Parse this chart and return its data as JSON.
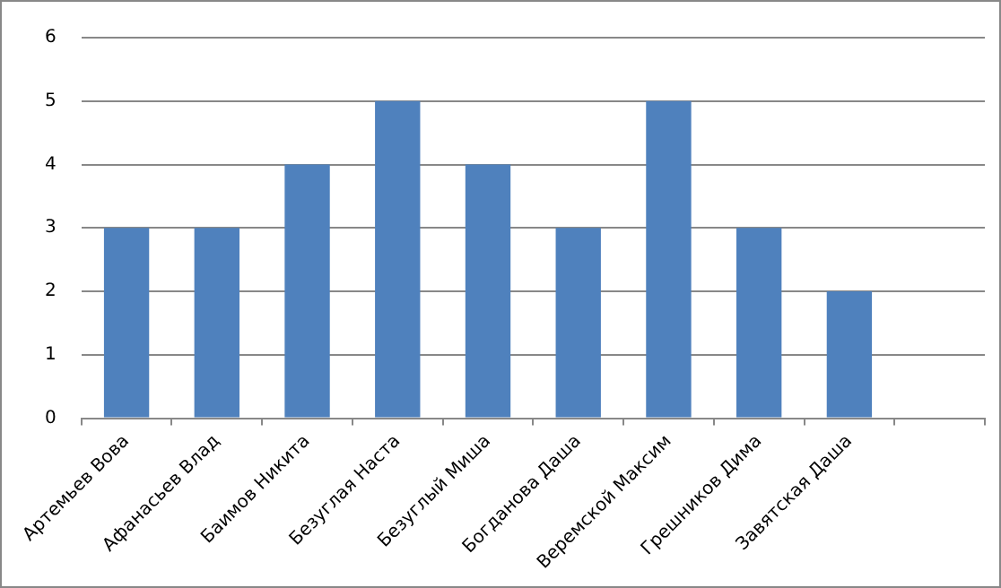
{
  "chart_data": {
    "type": "bar",
    "categories": [
      "Артемьев Вова",
      "Афанасьев Влад",
      "Баимов Никита",
      "Безуглая Наста",
      "Безуглый Миша",
      "Богданова Даша",
      "Веремской Максим",
      "Грешников Дима",
      "Завятская Даша",
      null
    ],
    "values": [
      3,
      3,
      4,
      5,
      4,
      3,
      5,
      3,
      2,
      null
    ],
    "color": "#4f81bd",
    "ylim": [
      0,
      6
    ],
    "yticks": [
      0,
      1,
      2,
      3,
      4,
      5,
      6
    ],
    "grid": "y",
    "legend": false
  }
}
